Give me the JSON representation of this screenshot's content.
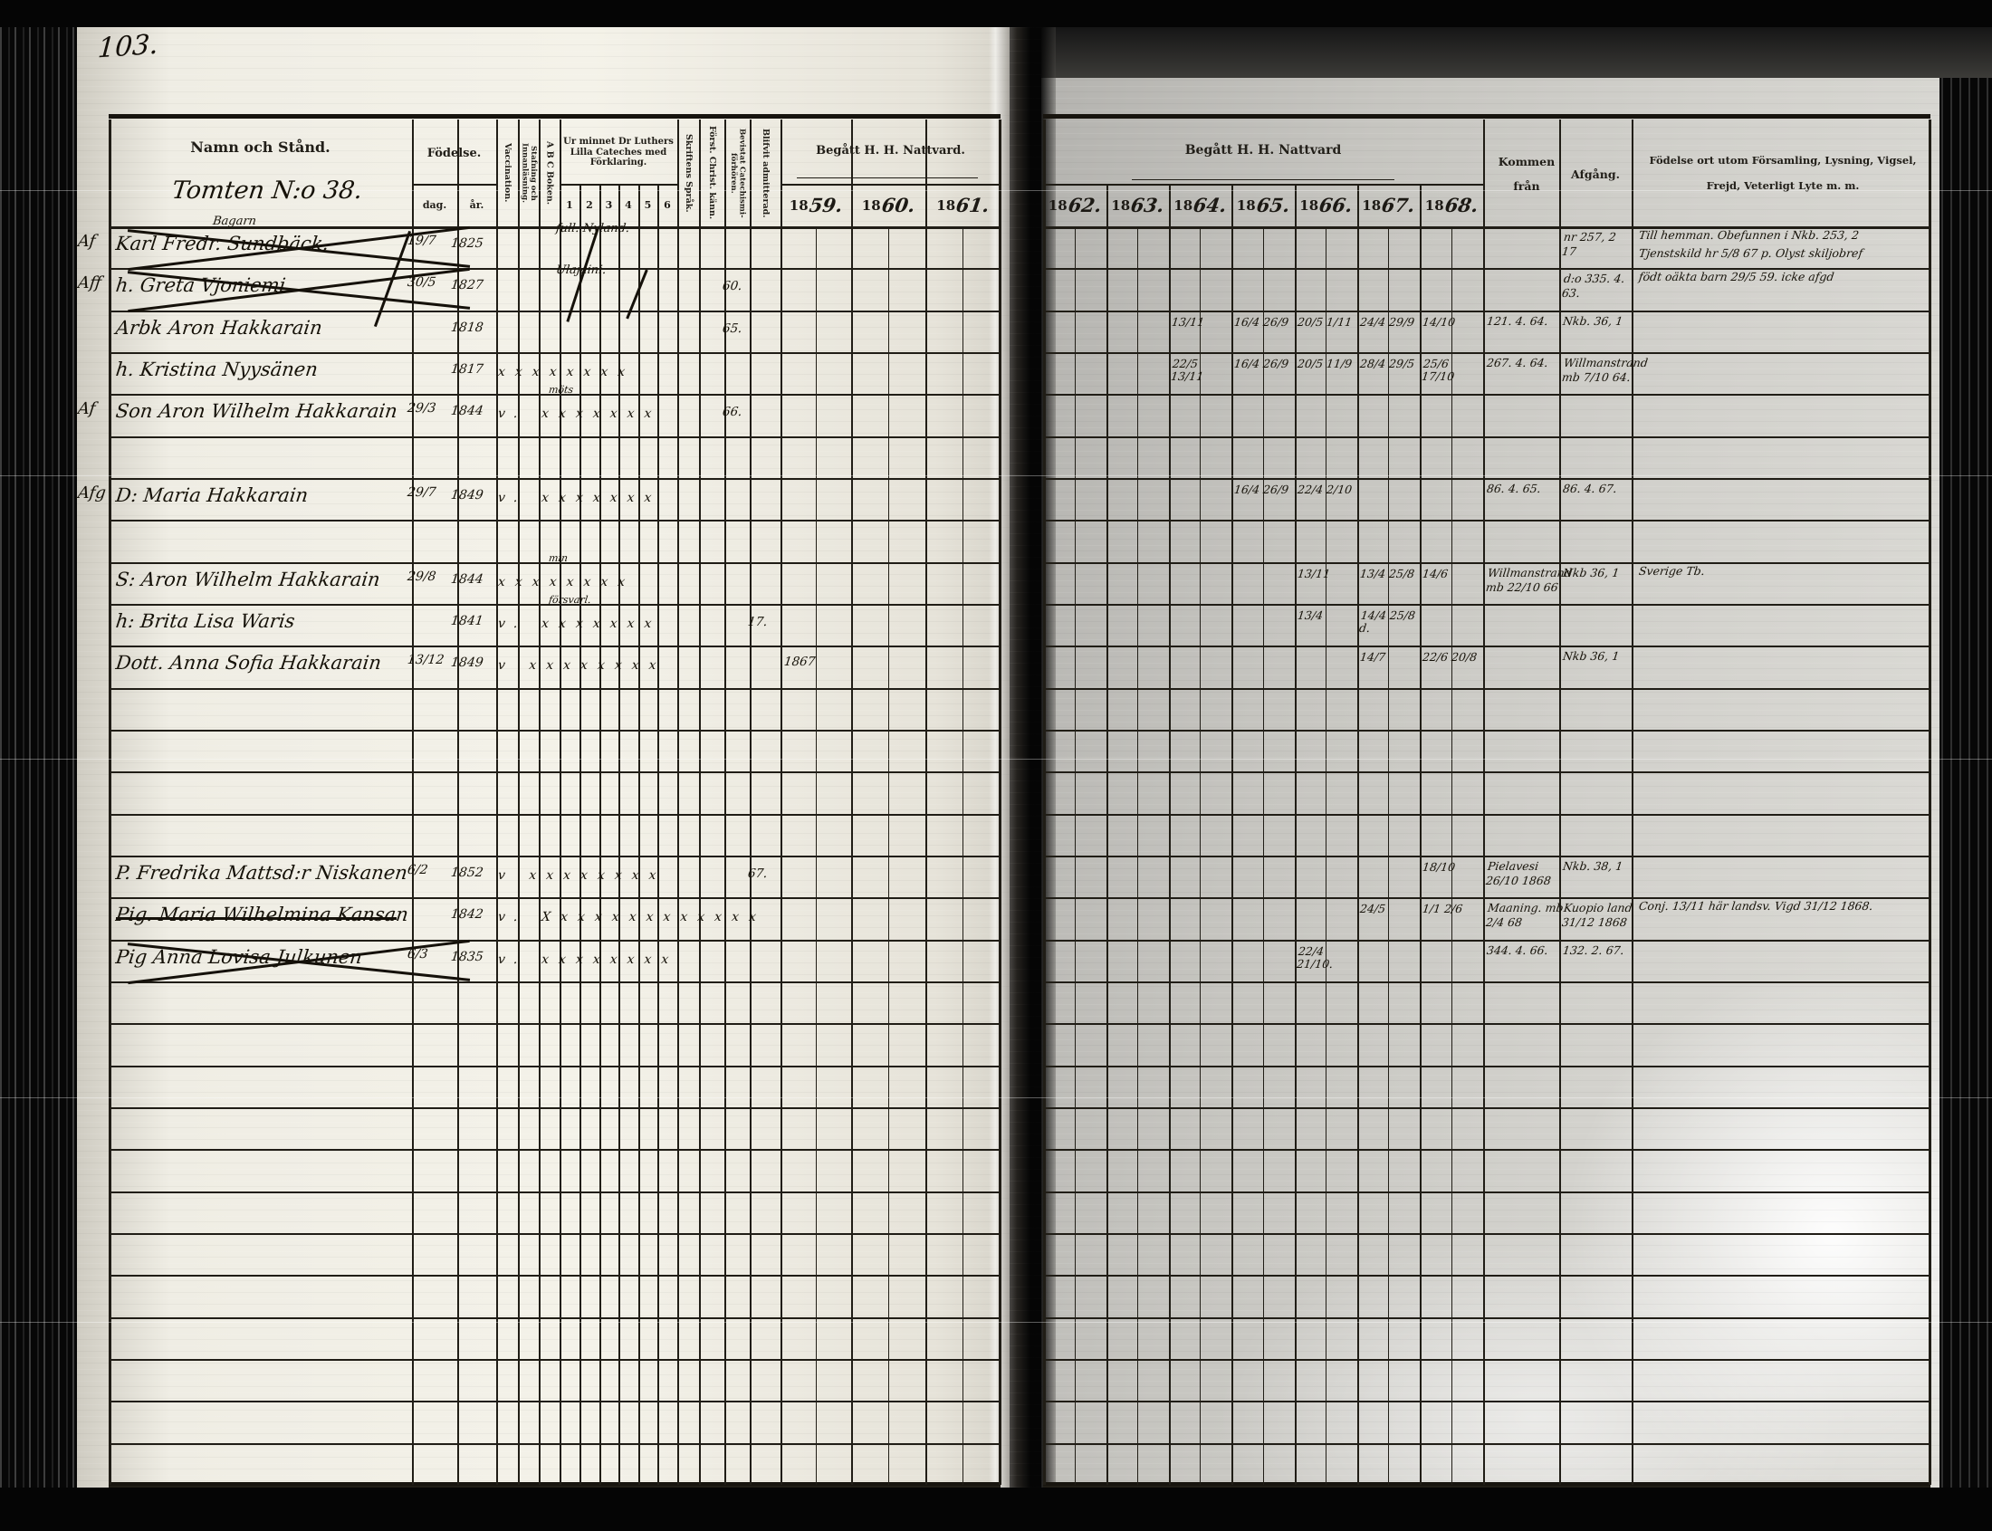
{
  "page_number": "103.",
  "left_header": {
    "name": "Namn och Stånd.",
    "name_script": "Tomten N:o 38.",
    "fodelse": "Födelse.",
    "dag": "dag.",
    "ar": "år.",
    "vaccination": "Vaccination.",
    "stafning": "Stafning och Innanläsning.",
    "abc": "A B C Boken.",
    "ur_minnet": "Ur minnet Dr Luthers Lilla Cateches med Förklaring.",
    "ur_cols": [
      "1",
      "2",
      "3",
      "4",
      "5",
      "6"
    ],
    "skriftens": "Skriftens Språk.",
    "forst": "Först. Christ. känn.",
    "bevistat": "Bevistat Catechismi-förhören.",
    "admitterad": "Blifvit admitterad.",
    "nattvard": "Begått H. H. Nattvard.",
    "years": [
      {
        "p": "18",
        "s": "59."
      },
      {
        "p": "18",
        "s": "60."
      },
      {
        "p": "18",
        "s": "61."
      }
    ]
  },
  "right_header": {
    "nattvard": "Begått H. H. Nattvard",
    "years": [
      {
        "p": "18",
        "s": "62."
      },
      {
        "p": "18",
        "s": "63."
      },
      {
        "p": "18",
        "s": "64."
      },
      {
        "p": "18",
        "s": "65."
      },
      {
        "p": "18",
        "s": "66."
      },
      {
        "p": "18",
        "s": "67."
      },
      {
        "p": "18",
        "s": "68."
      }
    ],
    "kommen": "Kommen från",
    "afgang": "Afgång.",
    "notes": "Födelse ort utom Församling, Lysning, Vigsel, Frejd, Veterligt Lyte m. m."
  },
  "rows": [
    {
      "row": 0,
      "cross": "x",
      "margin": "Af",
      "name_above": "Bagarn",
      "name": "Karl Fredr. Sundbäck.",
      "dag": "19/7",
      "ar": "1825",
      "cat_note": "full. Nyland.",
      "afg": "nr 257, 2\n17",
      "note": "Till hemman. Obefunnen i Nkb. 253, 2",
      "note2": "Tjenstskild hr 5/8 67 p. Olyst skiljobref"
    },
    {
      "row": 1,
      "cross": "x",
      "margin": "Aff",
      "name": "h. Greta Vjoniemi",
      "dag": "30/5",
      "ar": "1827",
      "cat_note": "Ulajaini.",
      "bevistat": "60.",
      "afg": "d:o 335. 4. 63.",
      "note": "födt oäkta barn 29/5 59. icke afgd"
    },
    {
      "row": 2,
      "name": "Arbk Aron Hakkarain",
      "ar": "1818",
      "bevistat": "65.",
      "y1864": "13/11",
      "y1865": "16/4 26/9",
      "y1866": "20/5 1/11",
      "y1867": "24/4 29/9",
      "y1868": "14/10",
      "kommen": "121. 4. 64.",
      "afg": "Nkb. 36, 1"
    },
    {
      "row": 3,
      "name": "h. Kristina Nyysänen",
      "ar": "1817",
      "marks": "xxxxxxxx",
      "y1864": "22/5 13/11",
      "y1865": "16/4 26/9",
      "y1866": "20/5 11/9",
      "y1867": "28/4 29/5",
      "y1868": "25/6 17/10",
      "kommen": "267. 4. 64.",
      "afg": "Willmanstrand mb 7/10 64."
    },
    {
      "row": 4,
      "margin": "Af",
      "name": "Son Aron Wilhelm Hakkarain",
      "dag": "29/3",
      "ar": "1844",
      "marks": "v. xxxxxxx",
      "cat_note_small": "möts",
      "bevistat": "66."
    },
    {
      "row": 6,
      "margin": "Afg",
      "name": "D: Maria Hakkarain",
      "dag": "29/7",
      "ar": "1849",
      "marks": "v. xxxxxxx",
      "y1865": "16/4 26/9",
      "y1866": "22/4 2/10",
      "kommen": "86. 4. 65.",
      "afg": "86. 4. 67."
    },
    {
      "row": 8,
      "name": "S: Aron Wilhelm Hakkarain",
      "dag": "29/8",
      "ar": "1844",
      "marks": "xxxxxxxx",
      "cat_note_small": "min",
      "y1866": "13/11",
      "y1867": "13/4 25/8",
      "y1868": "14/6",
      "kommen": "Willmanstrand mb 22/10 66",
      "afg": "Nkb 36, 1",
      "note": "Sverige Tb."
    },
    {
      "row": 9,
      "name": "h: Brita Lisa Waris",
      "ar": "1841",
      "marks": "v. xxxxxxx",
      "cat_note_small": "försvarl.",
      "admitted": "17.",
      "y1866": "13/4",
      "y1867": "14/4 25/8 d."
    },
    {
      "row": 10,
      "name": "Dott. Anna Sofia Hakkarain",
      "dag": "13/12",
      "ar": "1849",
      "marks": "v xxxxxxxx",
      "y1859": "1867",
      "y1867": "14/7",
      "y1868": "22/6 20/8",
      "afg": "Nkb 36, 1"
    },
    {
      "row": 15,
      "name": "P. Fredrika Mattsd:r Niskanen",
      "dag": "6/2",
      "ar": "1852",
      "marks": "v xxxxxxxx",
      "admitted": "67.",
      "y1868": "18/10",
      "kommen": "Pielavesi 26/10 1868",
      "afg": "Nkb. 38, 1"
    },
    {
      "row": 16,
      "cross": "strike",
      "name": "Pig. Maria Wilhelmina Kansan",
      "ar": "1842",
      "marks": "v. Xxxxxxxxxxxxx",
      "y1867": "24/5",
      "y1868": "1/1 2/6",
      "kommen": "Maaning. mb 2/4 68",
      "afg": "Kuopio land 31/12 1868",
      "note": "Conj. 13/11 här landsv. Vigd 31/12 1868."
    },
    {
      "row": 17,
      "cross": "x",
      "name": "Pig Anna Lovisa Julkunen",
      "dag": "6/3",
      "ar": "1835",
      "marks": "v. xxxxxxxx",
      "y1866": "22/4 21/10.",
      "kommen": "344. 4. 66.",
      "afg": "132. 2. 67."
    }
  ]
}
